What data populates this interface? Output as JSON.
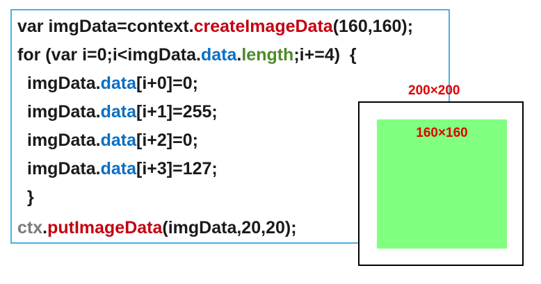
{
  "code": {
    "line1": {
      "a": "var imgData=context.",
      "b": "createImageData",
      "c": "(160,160);"
    },
    "line2": {
      "a": "for (var i=0;i<imgData.",
      "b": "data",
      "c": ".",
      "d": "length",
      "e": ";i+=4)  {"
    },
    "line3": {
      "a": "imgData.",
      "b": "data",
      "c": "[i+0]=0;"
    },
    "line4": {
      "a": "imgData.",
      "b": "data",
      "c": "[i+1]=255;"
    },
    "line5": {
      "a": "imgData.",
      "b": "data",
      "c": "[i+2]=0;"
    },
    "line6": {
      "a": "imgData.",
      "b": "data",
      "c": "[i+3]=127;"
    },
    "line7": {
      "a": "}"
    },
    "line8": {
      "a": "ctx",
      "b": ".",
      "c": "putImageData",
      "d": "(imgData,20,20);"
    }
  },
  "canvas": {
    "outer_label": "200×200",
    "inner_label": "160×160",
    "fill_color": "#80ff80",
    "border_color": "#000000"
  },
  "colors": {
    "method": "#c40010",
    "property": "#0a6fc2",
    "length": "#4f8a29",
    "ctx": "#7a7a7a",
    "panel_border": "#49b1e4"
  }
}
